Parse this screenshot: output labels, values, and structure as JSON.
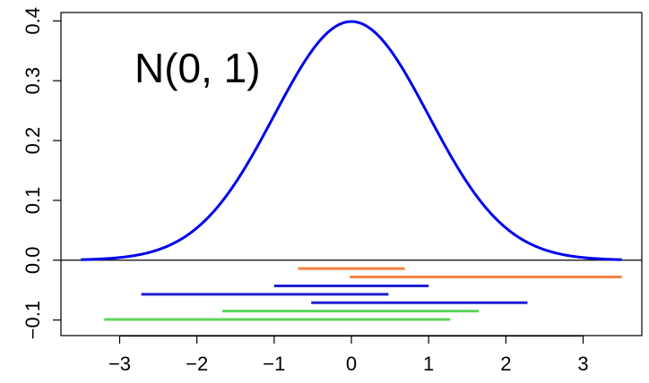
{
  "chart_data": {
    "type": "line",
    "title": "",
    "xlabel": "",
    "ylabel": "",
    "annotation": "N(0, 1)",
    "xlim": [
      -3.76,
      3.76
    ],
    "ylim": [
      -0.126,
      0.414
    ],
    "grid": false,
    "box": true,
    "x_ticks": [
      -3,
      -2,
      -1,
      0,
      1,
      2,
      3
    ],
    "x_tick_labels": [
      "−3",
      "−2",
      "−1",
      "0",
      "1",
      "2",
      "3"
    ],
    "y_ticks": [
      -0.1,
      0.0,
      0.1,
      0.2,
      0.3,
      0.4
    ],
    "y_tick_labels": [
      "−0.1",
      "0.0",
      "0.1",
      "0.2",
      "0.3",
      "0.4"
    ],
    "reference_line_y": 0,
    "curve": {
      "name": "",
      "distribution": "normal",
      "mean": 0,
      "sd": 1,
      "x_range": [
        -3.5,
        3.5
      ],
      "color": "#0000ee"
    },
    "intervals": [
      {
        "xmin": -0.69,
        "xmax": 0.69,
        "y": -0.014,
        "color": "#f4823c"
      },
      {
        "xmin": -0.02,
        "xmax": 3.5,
        "y": -0.028,
        "color": "#f4823c"
      },
      {
        "xmin": -1.0,
        "xmax": 1.0,
        "y": -0.043,
        "color": "#1f1fd2"
      },
      {
        "xmin": -2.72,
        "xmax": 0.48,
        "y": -0.057,
        "color": "#1f1fd2"
      },
      {
        "xmin": -0.52,
        "xmax": 2.28,
        "y": -0.071,
        "color": "#1f1fd2"
      },
      {
        "xmin": -1.67,
        "xmax": 1.65,
        "y": -0.085,
        "color": "#5dd55d"
      },
      {
        "xmin": -3.2,
        "xmax": 1.28,
        "y": -0.099,
        "color": "#5dd55d"
      }
    ]
  }
}
